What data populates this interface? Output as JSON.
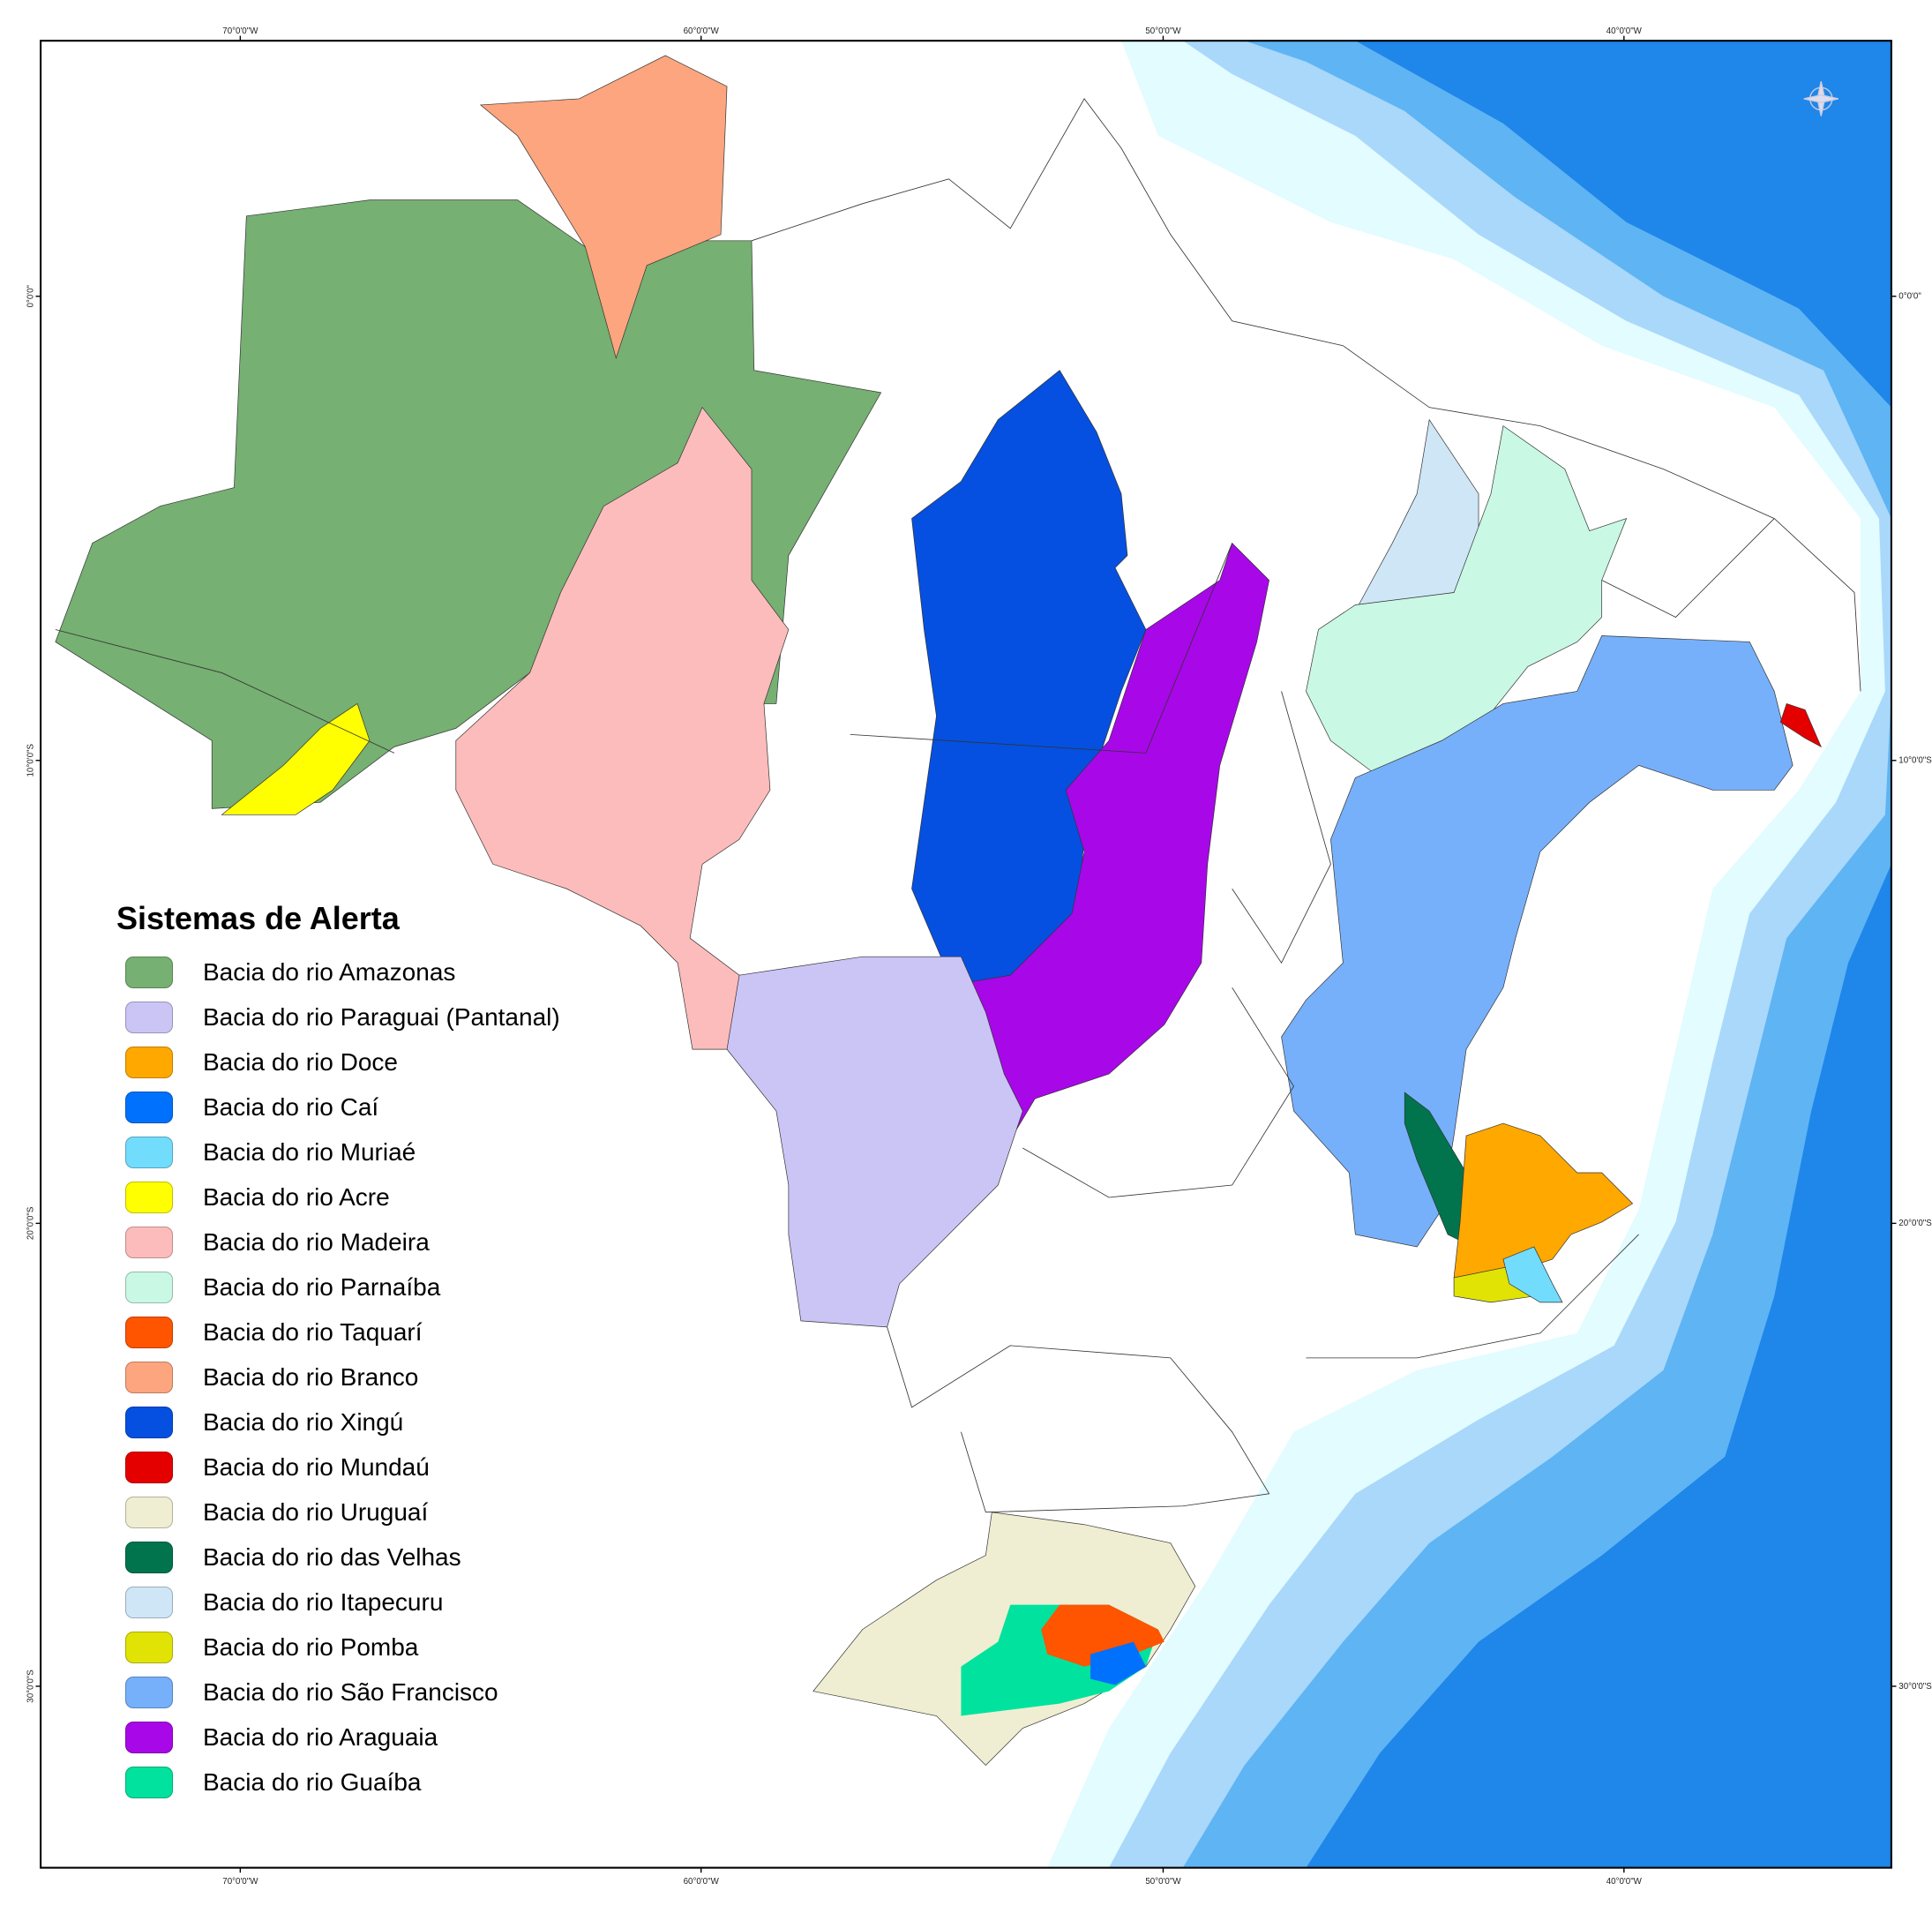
{
  "map": {
    "graticule": {
      "longitudes": [
        "70°0'0\"W",
        "60°0'0\"W",
        "50°0'0\"W",
        "40°0'0\"W"
      ],
      "latitudes": [
        "0°0'0\"",
        "10°0'0\"S",
        "20°0'0\"S",
        "30°0'0\"S"
      ]
    },
    "compass": "compass-rose-icon",
    "ocean_colors": [
      "#e2fcff",
      "#a9d8fb",
      "#5fb4f3",
      "#1f86ea",
      "#0a62d6"
    ]
  },
  "legend": {
    "title": "Sistemas de Alerta",
    "items": [
      {
        "label": "Bacia do rio Amazonas",
        "color": "#76b072"
      },
      {
        "label": "Bacia do rio Paraguai (Pantanal)",
        "color": "#cbc5f6"
      },
      {
        "label": "Bacia do rio Doce",
        "color": "#ffa800"
      },
      {
        "label": "Bacia do rio Caí",
        "color": "#0071fc"
      },
      {
        "label": "Bacia do rio Muriaé",
        "color": "#72dcfc"
      },
      {
        "label": "Bacia do rio Acre",
        "color": "#ffff00"
      },
      {
        "label": "Bacia do rio Madeira",
        "color": "#fbbcbb"
      },
      {
        "label": "Bacia do rio Parnaíba",
        "color": "#c9f8e4"
      },
      {
        "label": "Bacia do rio Taquarí",
        "color": "#ff5400"
      },
      {
        "label": "Bacia do rio Branco",
        "color": "#fda57e"
      },
      {
        "label": "Bacia do rio Xingú",
        "color": "#0550e0"
      },
      {
        "label": "Bacia do rio Mundaú",
        "color": "#e50000"
      },
      {
        "label": "Bacia do rio Uruguaí",
        "color": "#efeed2"
      },
      {
        "label": "Bacia do rio das Velhas",
        "color": "#01744d"
      },
      {
        "label": "Bacia do rio Itapecuru",
        "color": "#cfe6f7"
      },
      {
        "label": "Bacia do rio Pomba",
        "color": "#e1e304"
      },
      {
        "label": "Bacia do rio São Francisco",
        "color": "#76b0fb"
      },
      {
        "label": "Bacia do rio Araguaia",
        "color": "#a807e8"
      },
      {
        "label": "Bacia do rio Guaíba",
        "color": "#00e29e"
      }
    ]
  }
}
